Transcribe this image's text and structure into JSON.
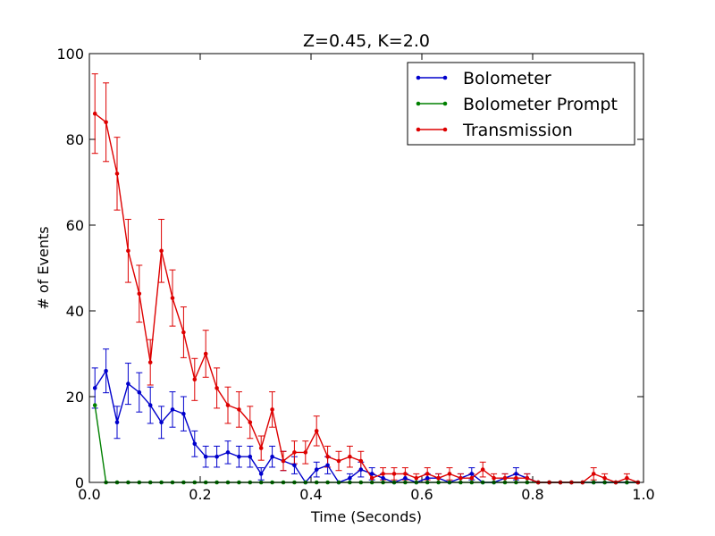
{
  "chart_data": {
    "type": "line",
    "title": "Z=0.45, K=2.0",
    "xlabel": "Time (Seconds)",
    "ylabel": "# of Events",
    "xlim": [
      0.0,
      1.0
    ],
    "ylim": [
      0,
      100
    ],
    "grid": false,
    "legend_position": "top-right",
    "x_ticks": [
      0.0,
      0.2,
      0.4,
      0.6,
      0.8,
      1.0
    ],
    "x_tick_labels": [
      "0.0",
      "0.2",
      "0.4",
      "0.6",
      "0.8",
      "1.0"
    ],
    "y_ticks": [
      0,
      20,
      40,
      60,
      80,
      100
    ],
    "y_tick_labels": [
      "0",
      "20",
      "40",
      "60",
      "80",
      "100"
    ],
    "x": [
      0.01,
      0.03,
      0.05,
      0.07,
      0.09,
      0.11,
      0.13,
      0.15,
      0.17,
      0.19,
      0.21,
      0.23,
      0.25,
      0.27,
      0.29,
      0.31,
      0.33,
      0.35,
      0.37,
      0.39,
      0.41,
      0.43,
      0.45,
      0.47,
      0.49,
      0.51,
      0.53,
      0.55,
      0.57,
      0.59,
      0.61,
      0.63,
      0.65,
      0.67,
      0.69,
      0.71,
      0.73,
      0.75,
      0.77,
      0.79,
      0.81,
      0.83,
      0.85,
      0.87,
      0.89,
      0.91,
      0.93,
      0.95,
      0.97,
      0.99
    ],
    "series": [
      {
        "name": "Bolometer",
        "color": "#0000cc",
        "values": [
          22,
          26,
          14,
          23,
          21,
          18,
          14,
          17,
          16,
          9,
          6,
          6,
          7,
          6,
          6,
          2,
          6,
          5,
          4,
          0,
          3,
          4,
          0,
          1,
          3,
          2,
          1,
          0,
          1,
          0,
          1,
          1,
          0,
          1,
          2,
          0,
          0,
          1,
          2,
          1,
          0,
          0,
          0,
          0,
          0,
          0,
          0,
          0,
          0,
          0
        ]
      },
      {
        "name": "Bolometer Prompt",
        "color": "#008000",
        "values": [
          18,
          0,
          0,
          0,
          0,
          0,
          0,
          0,
          0,
          0,
          0,
          0,
          0,
          0,
          0,
          0,
          0,
          0,
          0,
          0,
          0,
          0,
          0,
          0,
          0,
          0,
          0,
          0,
          0,
          0,
          0,
          0,
          0,
          0,
          0,
          0,
          0,
          0,
          0,
          0,
          0,
          0,
          0,
          0,
          0,
          0,
          0,
          0,
          0,
          0
        ]
      },
      {
        "name": "Transmission",
        "color": "#dd0000",
        "values": [
          86,
          84,
          72,
          54,
          44,
          28,
          54,
          43,
          35,
          24,
          30,
          22,
          18,
          17,
          14,
          8,
          17,
          5,
          7,
          7,
          12,
          6,
          5,
          6,
          5,
          1,
          2,
          2,
          2,
          1,
          2,
          1,
          2,
          1,
          1,
          3,
          1,
          1,
          1,
          1,
          0,
          0,
          0,
          0,
          0,
          2,
          1,
          0,
          1,
          0
        ]
      }
    ]
  }
}
